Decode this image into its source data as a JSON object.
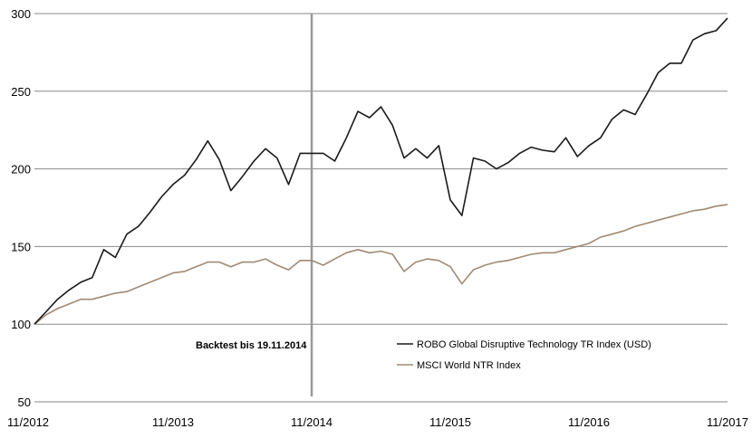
{
  "chart_data": {
    "type": "line",
    "title": "",
    "xlabel": "",
    "ylabel": "",
    "ylim": [
      50,
      300
    ],
    "yticks": [
      50,
      100,
      150,
      200,
      250,
      300
    ],
    "xticks": [
      "11/2012",
      "11/2013",
      "11/2014",
      "11/2015",
      "11/2016",
      "11/2017"
    ],
    "xlim": [
      0,
      60
    ],
    "grid": "horizontal",
    "legend_position": "bottom-right",
    "annotation": {
      "label": "Backtest bis 19.11.2014",
      "x_month": 24,
      "color": "#999999"
    },
    "x_months": [
      0,
      1,
      2,
      3,
      4,
      5,
      6,
      7,
      8,
      9,
      10,
      11,
      12,
      13,
      14,
      15,
      16,
      17,
      18,
      19,
      20,
      21,
      22,
      23,
      24,
      25,
      26,
      27,
      28,
      29,
      30,
      31,
      32,
      33,
      34,
      35,
      36,
      37,
      38,
      39,
      40,
      41,
      42,
      43,
      44,
      45,
      46,
      47,
      48,
      49,
      50,
      51,
      52,
      53,
      54,
      55,
      56,
      57,
      58,
      59,
      60
    ],
    "series": [
      {
        "name": "ROBO Global Disruptive Technology TR Index (USD)",
        "color": "#1a1a1a",
        "values": [
          100,
          108,
          116,
          122,
          127,
          130,
          148,
          143,
          158,
          163,
          172,
          182,
          190,
          196,
          206,
          218,
          206,
          186,
          195,
          205,
          213,
          207,
          190,
          210,
          210,
          210,
          205,
          220,
          237,
          233,
          240,
          228,
          207,
          213,
          207,
          215,
          180,
          170,
          207,
          205,
          200,
          204,
          210,
          214,
          212,
          211,
          220,
          208,
          215,
          220,
          232,
          238,
          235,
          248,
          262,
          268,
          268,
          283,
          287,
          289,
          297
        ]
      },
      {
        "name": "MSCI World NTR Index",
        "color": "#a08a74",
        "values": [
          100,
          106,
          110,
          113,
          116,
          116,
          118,
          120,
          121,
          124,
          127,
          130,
          133,
          134,
          137,
          140,
          140,
          137,
          140,
          140,
          142,
          138,
          135,
          141,
          141,
          138,
          142,
          146,
          148,
          146,
          147,
          145,
          134,
          140,
          142,
          141,
          137,
          126,
          135,
          138,
          140,
          141,
          143,
          145,
          146,
          146,
          148,
          150,
          152,
          156,
          158,
          160,
          163,
          165,
          167,
          169,
          171,
          173,
          174,
          176,
          177
        ]
      }
    ]
  }
}
